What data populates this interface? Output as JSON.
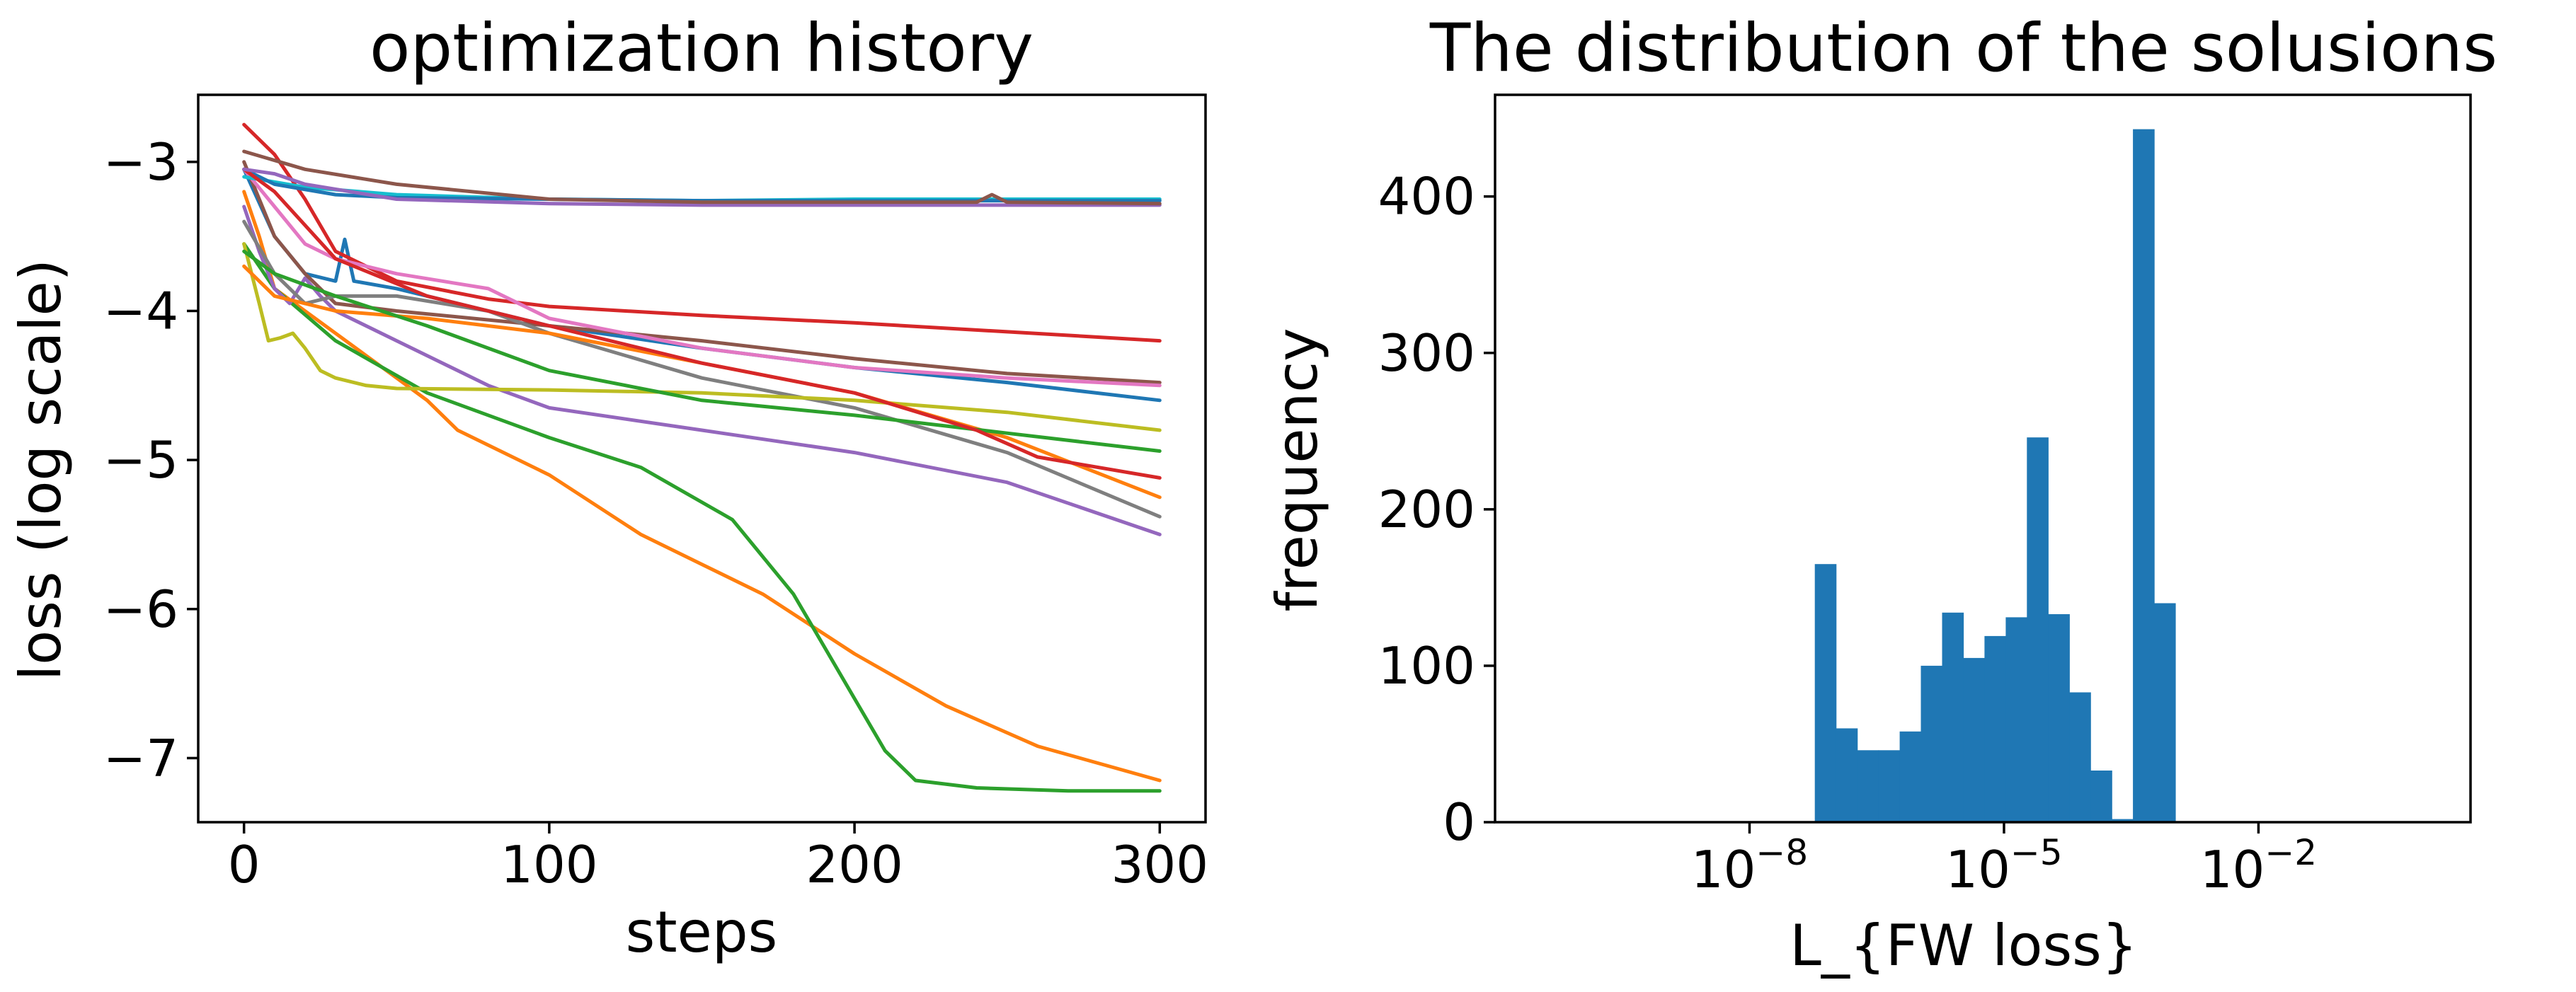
{
  "chart_data": [
    {
      "type": "line",
      "title": "optimization history",
      "xlabel": "steps",
      "ylabel": "loss (log scale)",
      "xlim": [
        -15,
        315
      ],
      "ylim": [
        -7.43,
        -2.55
      ],
      "xticks": [
        0,
        100,
        200,
        300
      ],
      "xtick_labels": [
        "0",
        "100",
        "200",
        "300"
      ],
      "yticks": [
        -3,
        -4,
        -5,
        -6,
        -7
      ],
      "ytick_labels": [
        "−3",
        "−4",
        "−5",
        "−6",
        "−7"
      ],
      "grid": false,
      "series": [
        {
          "color": "#1f77b4",
          "x": [
            0,
            10,
            20,
            30,
            33,
            36,
            50,
            100,
            150,
            200,
            250,
            300
          ],
          "y": [
            -3.05,
            -3.5,
            -3.75,
            -3.8,
            -3.52,
            -3.8,
            -3.85,
            -4.1,
            -4.25,
            -4.38,
            -4.48,
            -4.6
          ]
        },
        {
          "color": "#ff7f0e",
          "x": [
            0,
            5,
            10,
            20,
            40,
            60,
            70,
            100,
            130,
            150,
            170,
            200,
            230,
            260,
            300
          ],
          "y": [
            -3.2,
            -3.5,
            -3.85,
            -4.0,
            -4.3,
            -4.6,
            -4.8,
            -5.1,
            -5.5,
            -5.7,
            -5.9,
            -6.3,
            -6.65,
            -6.92,
            -7.15
          ]
        },
        {
          "color": "#2ca02c",
          "x": [
            0,
            10,
            30,
            60,
            100,
            130,
            160,
            180,
            190,
            200,
            210,
            220,
            240,
            270,
            300
          ],
          "y": [
            -3.55,
            -3.85,
            -4.2,
            -4.55,
            -4.85,
            -5.05,
            -5.4,
            -5.9,
            -6.25,
            -6.6,
            -6.95,
            -7.15,
            -7.2,
            -7.22,
            -7.22
          ]
        },
        {
          "color": "#d62728",
          "x": [
            0,
            10,
            20,
            30,
            50,
            80,
            100,
            150,
            200,
            250,
            300
          ],
          "y": [
            -2.75,
            -2.95,
            -3.25,
            -3.6,
            -3.8,
            -3.92,
            -3.97,
            -4.03,
            -4.08,
            -4.14,
            -4.2
          ]
        },
        {
          "color": "#9467bd",
          "x": [
            0,
            5,
            10,
            15,
            20,
            25,
            30,
            50,
            80,
            100,
            150,
            200,
            250,
            300
          ],
          "y": [
            -3.3,
            -3.6,
            -3.85,
            -3.95,
            -3.78,
            -3.9,
            -4.0,
            -4.2,
            -4.5,
            -4.65,
            -4.8,
            -4.95,
            -5.15,
            -5.5
          ]
        },
        {
          "color": "#8c564b",
          "x": [
            0,
            10,
            20,
            30,
            50,
            100,
            150,
            200,
            250,
            300
          ],
          "y": [
            -3.0,
            -3.5,
            -3.75,
            -3.95,
            -4.0,
            -4.1,
            -4.2,
            -4.32,
            -4.42,
            -4.48
          ]
        },
        {
          "color": "#e377c2",
          "x": [
            0,
            10,
            20,
            30,
            50,
            80,
            100,
            150,
            200,
            250,
            300
          ],
          "y": [
            -3.05,
            -3.3,
            -3.55,
            -3.65,
            -3.75,
            -3.85,
            -4.05,
            -4.25,
            -4.38,
            -4.45,
            -4.5
          ]
        },
        {
          "color": "#7f7f7f",
          "x": [
            0,
            10,
            20,
            30,
            50,
            80,
            100,
            150,
            200,
            250,
            300
          ],
          "y": [
            -3.4,
            -3.75,
            -3.95,
            -3.9,
            -3.9,
            -4.0,
            -4.15,
            -4.45,
            -4.65,
            -4.95,
            -5.38
          ]
        },
        {
          "color": "#bcbd22",
          "x": [
            0,
            5,
            8,
            12,
            16,
            20,
            25,
            30,
            40,
            50,
            100,
            150,
            200,
            250,
            300
          ],
          "y": [
            -3.55,
            -3.95,
            -4.2,
            -4.18,
            -4.15,
            -4.25,
            -4.4,
            -4.45,
            -4.5,
            -4.52,
            -4.53,
            -4.55,
            -4.6,
            -4.68,
            -4.8
          ]
        },
        {
          "color": "#17becf",
          "x": [
            0,
            20,
            50,
            100,
            150,
            200,
            250,
            300
          ],
          "y": [
            -3.1,
            -3.17,
            -3.22,
            -3.25,
            -3.26,
            -3.25,
            -3.25,
            -3.25
          ]
        },
        {
          "color": "#1f77b4",
          "x": [
            0,
            10,
            30,
            50,
            100,
            150,
            200,
            250,
            300
          ],
          "y": [
            -3.05,
            -3.15,
            -3.22,
            -3.24,
            -3.25,
            -3.26,
            -3.26,
            -3.26,
            -3.26
          ]
        },
        {
          "color": "#ff7f0e",
          "x": [
            0,
            10,
            30,
            60,
            100,
            150,
            200,
            250,
            300
          ],
          "y": [
            -3.7,
            -3.9,
            -4.0,
            -4.05,
            -4.15,
            -4.35,
            -4.55,
            -4.85,
            -5.25
          ]
        },
        {
          "color": "#2ca02c",
          "x": [
            0,
            10,
            30,
            60,
            100,
            150,
            200,
            250,
            300
          ],
          "y": [
            -3.6,
            -3.75,
            -3.9,
            -4.1,
            -4.4,
            -4.6,
            -4.7,
            -4.82,
            -4.94
          ]
        },
        {
          "color": "#d62728",
          "x": [
            0,
            10,
            30,
            60,
            100,
            150,
            200,
            240,
            260,
            300
          ],
          "y": [
            -3.05,
            -3.2,
            -3.65,
            -3.9,
            -4.1,
            -4.35,
            -4.55,
            -4.8,
            -4.98,
            -5.12
          ]
        },
        {
          "color": "#9467bd",
          "x": [
            0,
            10,
            20,
            50,
            100,
            150,
            200,
            250,
            300
          ],
          "y": [
            -3.05,
            -3.08,
            -3.15,
            -3.25,
            -3.28,
            -3.29,
            -3.29,
            -3.29,
            -3.29
          ]
        },
        {
          "color": "#8c564b",
          "x": [
            0,
            20,
            50,
            100,
            150,
            200,
            240,
            245,
            250,
            300
          ],
          "y": [
            -2.93,
            -3.05,
            -3.15,
            -3.25,
            -3.27,
            -3.27,
            -3.27,
            -3.22,
            -3.27,
            -3.28
          ]
        }
      ]
    },
    {
      "type": "bar",
      "title": "The distribution of the solusions",
      "xlabel": "L_{FW loss}",
      "ylabel": "frequency",
      "xscale": "log",
      "xlim_log10": [
        -11.0,
        0.5
      ],
      "ylim": [
        0,
        465
      ],
      "xticks_log10": [
        -8,
        -5,
        -2
      ],
      "xtick_labels": [
        {
          "base": "10",
          "exp": "−8"
        },
        {
          "base": "10",
          "exp": "−5"
        },
        {
          "base": "10",
          "exp": "−2"
        }
      ],
      "yticks": [
        0,
        100,
        200,
        300,
        400
      ],
      "ytick_labels": [
        "0",
        "100",
        "200",
        "300",
        "400"
      ],
      "grid": false,
      "color": "#1f77b4",
      "bin_edges_log10": [
        -7.23,
        -6.98,
        -6.73,
        -6.48,
        -6.23,
        -5.98,
        -5.73,
        -5.48,
        -5.23,
        -4.98,
        -4.73,
        -4.48,
        -4.23,
        -3.98,
        -3.73,
        -3.48,
        -3.23,
        -2.98
      ],
      "values": [
        165,
        60,
        46,
        46,
        58,
        100,
        134,
        105,
        119,
        131,
        246,
        133,
        83,
        33,
        2,
        443,
        140,
        8
      ]
    }
  ]
}
